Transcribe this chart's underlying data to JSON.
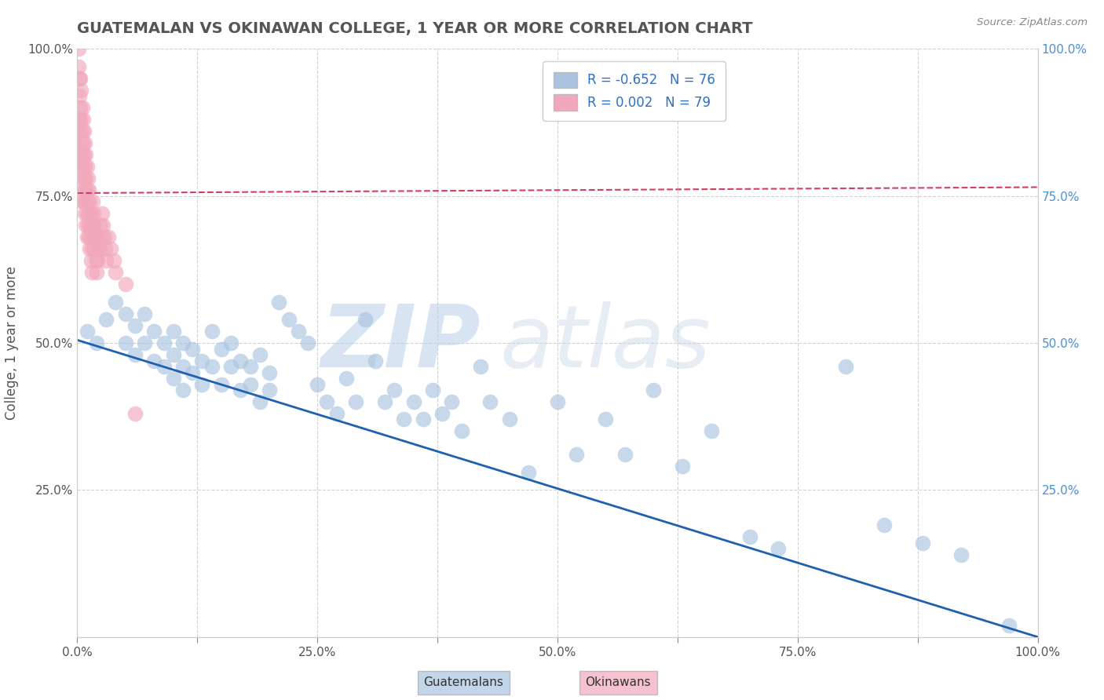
{
  "title": "GUATEMALAN VS OKINAWAN COLLEGE, 1 YEAR OR MORE CORRELATION CHART",
  "source": "Source: ZipAtlas.com",
  "ylabel": "College, 1 year or more",
  "legend_labels": [
    "Guatemalans",
    "Okinawans"
  ],
  "legend_r": [
    -0.652,
    0.002
  ],
  "legend_n": [
    76,
    79
  ],
  "blue_color": "#aac4e0",
  "pink_color": "#f2a8bc",
  "blue_line_color": "#2060b0",
  "pink_line_color": "#d04060",
  "background_color": "#ffffff",
  "grid_color": "#cccccc",
  "watermark": "ZIPatlas",
  "watermark_color": "#ccddf0",
  "xlim": [
    0.0,
    1.0
  ],
  "ylim": [
    0.0,
    1.0
  ],
  "xticks": [
    0.0,
    0.125,
    0.25,
    0.375,
    0.5,
    0.625,
    0.75,
    0.875,
    1.0
  ],
  "yticks": [
    0.0,
    0.25,
    0.5,
    0.75,
    1.0
  ],
  "xtick_labels": [
    "0.0%",
    "",
    "25.0%",
    "",
    "50.0%",
    "",
    "75.0%",
    "",
    "100.0%"
  ],
  "ytick_labels": [
    "",
    "25.0%",
    "50.0%",
    "75.0%",
    "100.0%"
  ],
  "right_ytick_labels": [
    "",
    "25.0%",
    "50.0%",
    "75.0%",
    "100.0%"
  ],
  "blue_scatter_x": [
    0.01,
    0.02,
    0.03,
    0.04,
    0.05,
    0.05,
    0.06,
    0.06,
    0.07,
    0.07,
    0.08,
    0.08,
    0.09,
    0.09,
    0.1,
    0.1,
    0.1,
    0.11,
    0.11,
    0.11,
    0.12,
    0.12,
    0.13,
    0.13,
    0.14,
    0.14,
    0.15,
    0.15,
    0.16,
    0.16,
    0.17,
    0.17,
    0.18,
    0.18,
    0.19,
    0.19,
    0.2,
    0.2,
    0.21,
    0.22,
    0.23,
    0.24,
    0.25,
    0.26,
    0.27,
    0.28,
    0.29,
    0.3,
    0.31,
    0.32,
    0.33,
    0.34,
    0.35,
    0.36,
    0.37,
    0.38,
    0.39,
    0.4,
    0.42,
    0.43,
    0.45,
    0.47,
    0.5,
    0.52,
    0.55,
    0.57,
    0.6,
    0.63,
    0.66,
    0.7,
    0.73,
    0.8,
    0.84,
    0.88,
    0.92,
    0.97
  ],
  "blue_scatter_y": [
    0.52,
    0.5,
    0.54,
    0.57,
    0.55,
    0.5,
    0.53,
    0.48,
    0.5,
    0.55,
    0.52,
    0.47,
    0.5,
    0.46,
    0.52,
    0.48,
    0.44,
    0.5,
    0.46,
    0.42,
    0.49,
    0.45,
    0.47,
    0.43,
    0.52,
    0.46,
    0.49,
    0.43,
    0.46,
    0.5,
    0.47,
    0.42,
    0.46,
    0.43,
    0.48,
    0.4,
    0.45,
    0.42,
    0.57,
    0.54,
    0.52,
    0.5,
    0.43,
    0.4,
    0.38,
    0.44,
    0.4,
    0.54,
    0.47,
    0.4,
    0.42,
    0.37,
    0.4,
    0.37,
    0.42,
    0.38,
    0.4,
    0.35,
    0.46,
    0.4,
    0.37,
    0.28,
    0.4,
    0.31,
    0.37,
    0.31,
    0.42,
    0.29,
    0.35,
    0.17,
    0.15,
    0.46,
    0.19,
    0.16,
    0.14,
    0.02
  ],
  "pink_scatter_x": [
    0.001,
    0.001,
    0.002,
    0.002,
    0.002,
    0.003,
    0.003,
    0.003,
    0.003,
    0.004,
    0.004,
    0.004,
    0.004,
    0.005,
    0.005,
    0.005,
    0.005,
    0.005,
    0.006,
    0.006,
    0.006,
    0.006,
    0.007,
    0.007,
    0.007,
    0.007,
    0.008,
    0.008,
    0.008,
    0.008,
    0.009,
    0.009,
    0.009,
    0.009,
    0.01,
    0.01,
    0.01,
    0.01,
    0.011,
    0.011,
    0.011,
    0.012,
    0.012,
    0.012,
    0.013,
    0.013,
    0.013,
    0.014,
    0.014,
    0.014,
    0.015,
    0.015,
    0.015,
    0.016,
    0.016,
    0.017,
    0.017,
    0.018,
    0.018,
    0.019,
    0.019,
    0.02,
    0.02,
    0.021,
    0.022,
    0.023,
    0.024,
    0.025,
    0.026,
    0.027,
    0.028,
    0.029,
    0.03,
    0.032,
    0.035,
    0.038,
    0.04,
    0.05,
    0.06
  ],
  "pink_scatter_y": [
    1.0,
    0.97,
    0.95,
    0.92,
    0.88,
    0.95,
    0.9,
    0.86,
    0.82,
    0.93,
    0.88,
    0.84,
    0.8,
    0.9,
    0.86,
    0.82,
    0.78,
    0.74,
    0.88,
    0.84,
    0.8,
    0.76,
    0.86,
    0.82,
    0.78,
    0.74,
    0.84,
    0.8,
    0.76,
    0.72,
    0.82,
    0.78,
    0.74,
    0.7,
    0.8,
    0.76,
    0.72,
    0.68,
    0.78,
    0.74,
    0.7,
    0.76,
    0.72,
    0.68,
    0.74,
    0.7,
    0.66,
    0.72,
    0.68,
    0.64,
    0.7,
    0.66,
    0.62,
    0.74,
    0.7,
    0.72,
    0.68,
    0.7,
    0.66,
    0.68,
    0.64,
    0.66,
    0.62,
    0.64,
    0.68,
    0.66,
    0.7,
    0.68,
    0.72,
    0.7,
    0.68,
    0.66,
    0.64,
    0.68,
    0.66,
    0.64,
    0.62,
    0.6,
    0.38
  ],
  "blue_trend_x": [
    0.0,
    1.0
  ],
  "blue_trend_y": [
    0.505,
    0.0
  ],
  "pink_trend_x": [
    0.0,
    1.0
  ],
  "pink_trend_y": [
    0.755,
    0.765
  ]
}
